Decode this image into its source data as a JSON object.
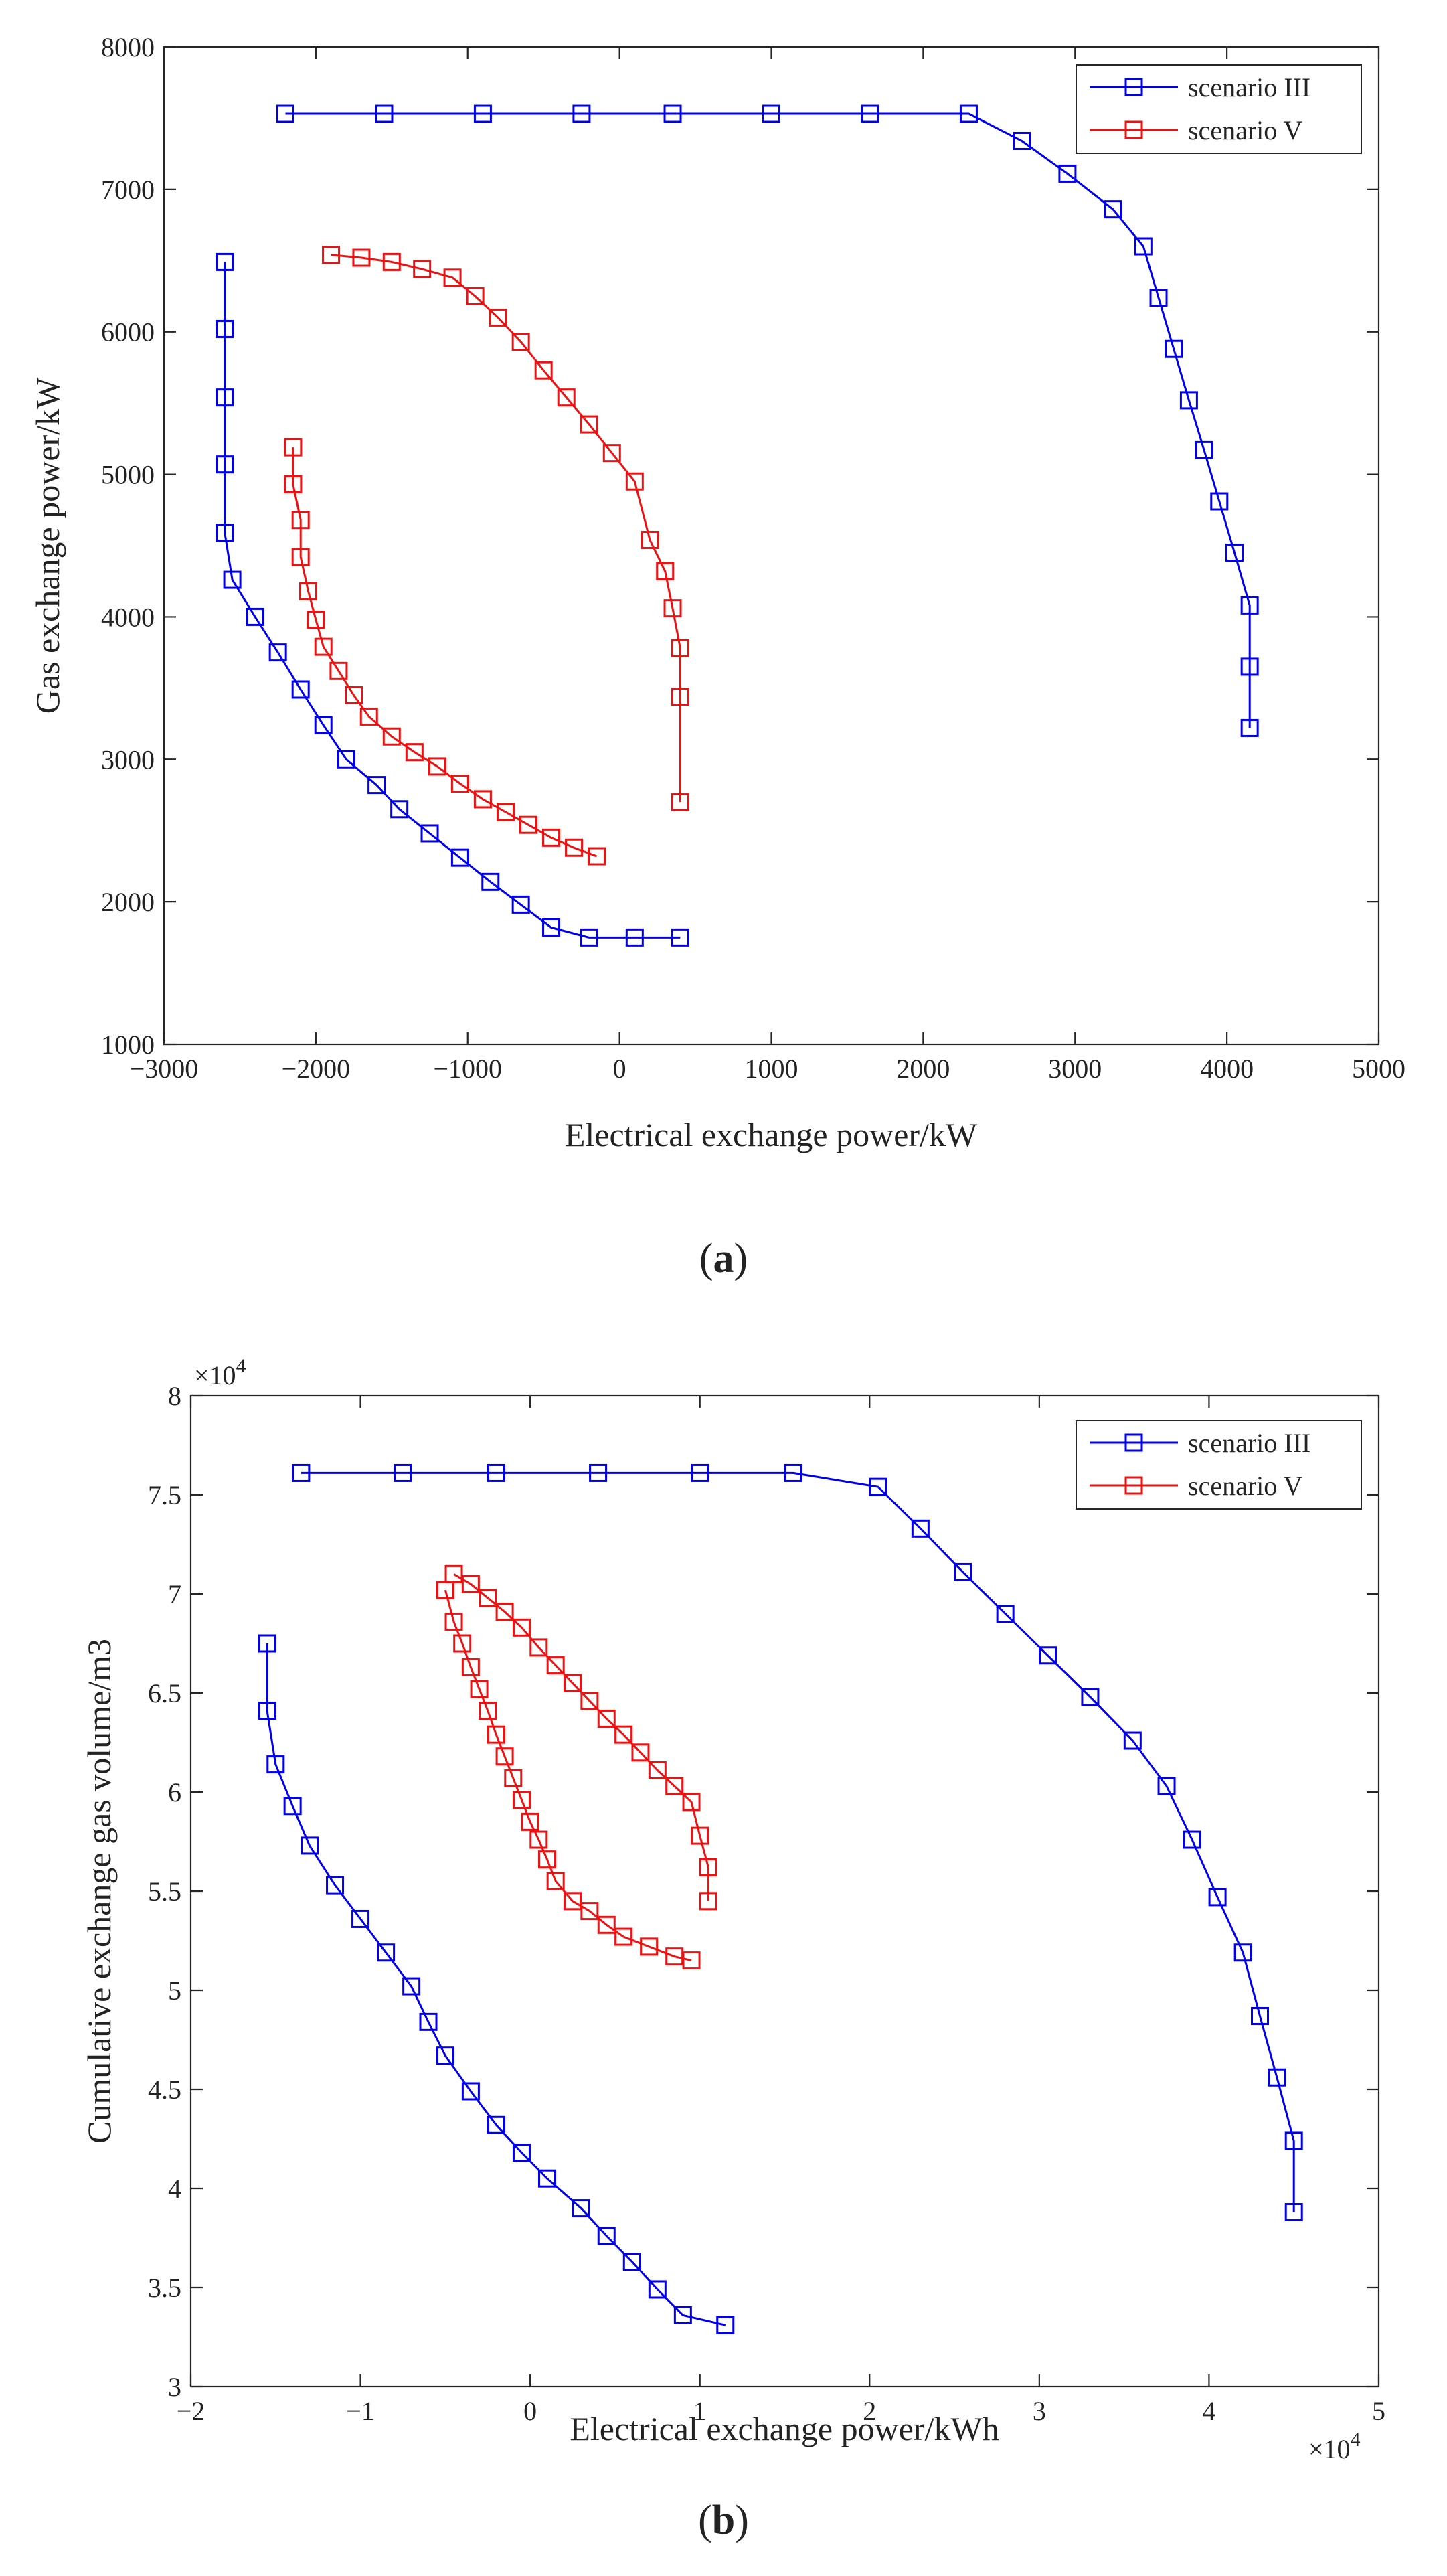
{
  "colors": {
    "scenario_III": "#0000ee",
    "scenario_V": "#ee1111",
    "axis": "#262626"
  },
  "chart_data": [
    {
      "type": "line",
      "caption_letter": "a",
      "xlabel": "Electrical exchange power/kW",
      "ylabel": "Gas exchange power/kW",
      "xlim": [
        -3000,
        5000
      ],
      "ylim": [
        1000,
        8000
      ],
      "xticks": [
        -3000,
        -2000,
        -1000,
        0,
        1000,
        2000,
        3000,
        4000,
        5000
      ],
      "yticks": [
        1000,
        2000,
        3000,
        4000,
        5000,
        6000,
        7000,
        8000
      ],
      "xtick_labels": [
        "−3000",
        "−2000",
        "−1000",
        "0",
        "1000",
        "2000",
        "3000",
        "4000",
        "5000"
      ],
      "ytick_labels": [
        "1000",
        "2000",
        "3000",
        "4000",
        "5000",
        "6000",
        "7000",
        "8000"
      ],
      "exponent_x": "",
      "exponent_y": "",
      "legend_position": "top-right",
      "series": [
        {
          "name": "scenario III",
          "color": "#0000ee",
          "x": [
            -2600,
            -2600,
            -2600,
            -2600,
            -2600,
            -2550,
            -2400,
            -2250,
            -2100,
            -1950,
            -1800,
            -1600,
            -1450,
            -1250,
            -1050,
            -850,
            -650,
            -450,
            -200,
            100,
            400
          ],
          "y": [
            6490,
            6020,
            5540,
            5070,
            4590,
            4260,
            4000,
            3750,
            3490,
            3240,
            3000,
            2820,
            2650,
            2480,
            2310,
            2140,
            1980,
            1820,
            1750,
            1750,
            1750
          ]
        },
        {
          "name": "scenario III",
          "color": "#0000ee",
          "x": [
            -2200,
            -1550,
            -900,
            -250,
            350,
            1000,
            1650,
            2300,
            2650,
            2950,
            3250,
            3450,
            3550,
            3650,
            3750,
            3850,
            3950,
            4050,
            4150,
            4150,
            4150
          ],
          "y": [
            7530,
            7530,
            7530,
            7530,
            7530,
            7530,
            7530,
            7530,
            7340,
            7110,
            6860,
            6600,
            6240,
            5880,
            5520,
            5170,
            4810,
            4450,
            4080,
            3650,
            3220
          ]
        },
        {
          "name": "scenario V",
          "color": "#ee1111",
          "x": [
            -2150,
            -2150,
            -2100,
            -2100,
            -2050,
            -2000,
            -1950,
            -1850,
            -1750,
            -1650,
            -1500,
            -1350,
            -1200,
            -1050,
            -900,
            -750,
            -600,
            -450,
            -300,
            -150
          ],
          "y": [
            5190,
            4930,
            4680,
            4420,
            4180,
            3980,
            3790,
            3620,
            3450,
            3300,
            3160,
            3050,
            2950,
            2830,
            2720,
            2630,
            2540,
            2450,
            2380,
            2320
          ]
        },
        {
          "name": "scenario V",
          "color": "#ee1111",
          "x": [
            -1900,
            -1700,
            -1500,
            -1300,
            -1100,
            -950,
            -800,
            -650,
            -500,
            -350,
            -200,
            -50,
            100,
            200,
            300,
            350,
            400,
            400,
            400
          ],
          "y": [
            6540,
            6520,
            6490,
            6440,
            6380,
            6250,
            6100,
            5930,
            5730,
            5540,
            5350,
            5150,
            4950,
            4540,
            4320,
            4060,
            3780,
            3440,
            2700
          ]
        }
      ],
      "legend": [
        {
          "name": "scenario III",
          "color": "#0000ee"
        },
        {
          "name": "scenario V",
          "color": "#ee1111"
        }
      ]
    },
    {
      "type": "line",
      "caption_letter": "b",
      "xlabel": "Electrical exchange power/kWh",
      "ylabel": "Cumulative exchange gas volume/m3",
      "xlim": [
        -2,
        5
      ],
      "ylim": [
        3,
        8
      ],
      "xticks": [
        -2,
        -1,
        0,
        1,
        2,
        3,
        4,
        5
      ],
      "yticks": [
        3,
        3.5,
        4,
        4.5,
        5,
        5.5,
        6,
        6.5,
        7,
        7.5,
        8
      ],
      "xtick_labels": [
        "−2",
        "−1",
        "0",
        "1",
        "2",
        "3",
        "4",
        "5"
      ],
      "ytick_labels": [
        "3",
        "3.5",
        "4",
        "4.5",
        "5",
        "5.5",
        "6",
        "6.5",
        "7",
        "7.5",
        "8"
      ],
      "exponent_x": "×10",
      "exponent_x_power": "4",
      "exponent_y": "×10",
      "exponent_y_power": "4",
      "legend_position": "top-right",
      "series": [
        {
          "name": "scenario III",
          "color": "#0000ee",
          "x": [
            -1.55,
            -1.55,
            -1.5,
            -1.4,
            -1.3,
            -1.15,
            -1.0,
            -0.85,
            -0.7,
            -0.6,
            -0.5,
            -0.35,
            -0.2,
            -0.05,
            0.1,
            0.3,
            0.45,
            0.6,
            0.75,
            0.9,
            1.15
          ],
          "y": [
            6.75,
            6.41,
            6.14,
            5.93,
            5.73,
            5.53,
            5.36,
            5.19,
            5.02,
            4.84,
            4.67,
            4.49,
            4.32,
            4.18,
            4.05,
            3.9,
            3.76,
            3.63,
            3.49,
            3.36,
            3.31
          ]
        },
        {
          "name": "scenario III",
          "color": "#0000ee",
          "x": [
            -1.35,
            -0.75,
            -0.2,
            0.4,
            1.0,
            1.55,
            2.05,
            2.3,
            2.55,
            2.8,
            3.05,
            3.3,
            3.55,
            3.75,
            3.9,
            4.05,
            4.2,
            4.3,
            4.4,
            4.5,
            4.5
          ],
          "y": [
            7.61,
            7.61,
            7.61,
            7.61,
            7.61,
            7.61,
            7.54,
            7.33,
            7.11,
            6.9,
            6.69,
            6.48,
            6.26,
            6.03,
            5.76,
            5.47,
            5.19,
            4.87,
            4.56,
            4.24,
            3.88
          ]
        },
        {
          "name": "scenario V",
          "color": "#ee1111",
          "x": [
            -0.5,
            -0.45,
            -0.4,
            -0.35,
            -0.3,
            -0.25,
            -0.2,
            -0.15,
            -0.1,
            -0.05,
            0.0,
            0.05,
            0.1,
            0.15,
            0.25,
            0.35,
            0.45,
            0.55,
            0.7,
            0.85,
            0.95
          ],
          "y": [
            7.02,
            6.86,
            6.75,
            6.63,
            6.52,
            6.41,
            6.29,
            6.18,
            6.07,
            5.96,
            5.85,
            5.76,
            5.66,
            5.55,
            5.45,
            5.4,
            5.33,
            5.27,
            5.22,
            5.17,
            5.15
          ]
        },
        {
          "name": "scenario V",
          "color": "#ee1111",
          "x": [
            -0.45,
            -0.35,
            -0.25,
            -0.15,
            -0.05,
            0.05,
            0.15,
            0.25,
            0.35,
            0.45,
            0.55,
            0.65,
            0.75,
            0.85,
            0.95,
            1.0,
            1.05,
            1.05
          ],
          "y": [
            7.1,
            7.05,
            6.98,
            6.91,
            6.83,
            6.73,
            6.64,
            6.55,
            6.46,
            6.37,
            6.29,
            6.2,
            6.11,
            6.03,
            5.95,
            5.78,
            5.62,
            5.45
          ]
        }
      ],
      "legend": [
        {
          "name": "scenario III",
          "color": "#0000ee"
        },
        {
          "name": "scenario V",
          "color": "#ee1111"
        }
      ]
    }
  ]
}
